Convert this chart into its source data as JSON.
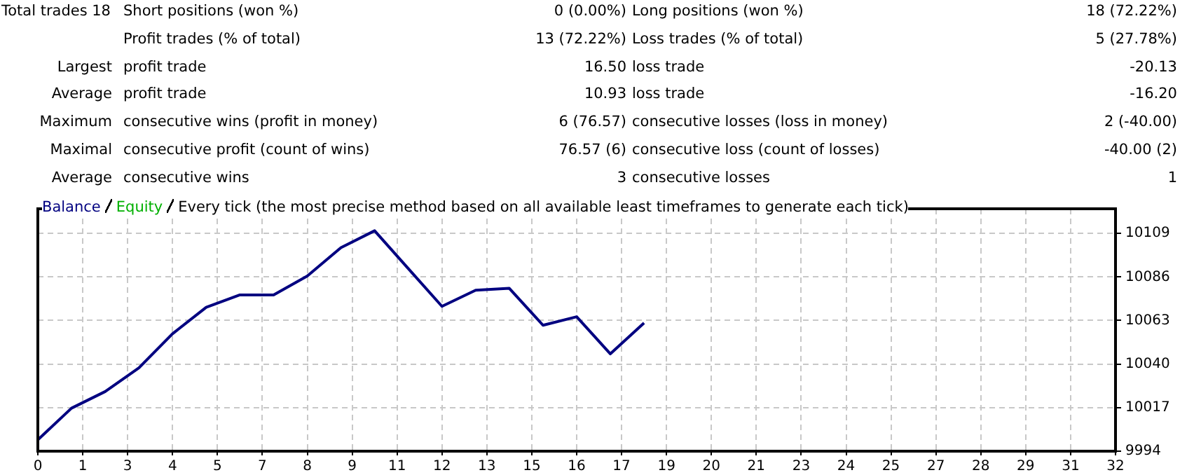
{
  "chart_data": {
    "type": "line",
    "title": "Every tick (the most precise method based on all available least timeframes to generate each tick)",
    "annotations": [
      "Total trades\t18\tShort positions (won %)\t0 (0.00%)\tLong positions (won %)\t18 (72.22%)",
      "\t\tProfit trades (% of total)\t13 (72.22%)\tLoss trades (% of total)\t5 (27.78%)",
      "Largest\t\tprofit trade\t16.50\tloss trade\t-20.13",
      "Average\t\tprofit trade\t10.93\tloss trade\t-16.20",
      "Maximum\t\tconsecutive wins (profit in money)\t6 (76.57)\tconsecutive losses (loss in money)\t2 (-40.00)",
      "Maximal\t\tconsecutive profit (count of wins)\t76.57 (6)\tconsecutive loss (count of losses)\t-40.00 (2)",
      "Average\t\tconsecutive wins\t3\tconsecutive losses\t1"
    ],
    "x": [
      0,
      1,
      2,
      3,
      4,
      5,
      6,
      7,
      8,
      9,
      10,
      11,
      12,
      13,
      14,
      15,
      16,
      17,
      18
    ],
    "series": [
      {
        "name": "Balance",
        "color": "#000080",
        "values": [
          10000,
          10016.7,
          10025.5,
          10038,
          10056,
          10070,
          10076.5,
          10076.5,
          10086.5,
          10101.5,
          10110.4,
          10090.4,
          10070.5,
          10079,
          10080,
          10060.5,
          10065,
          10045.4,
          10061.7
        ]
      },
      {
        "name": "Equity",
        "color": "#00b000",
        "values": [
          null,
          null,
          null,
          null,
          null,
          null,
          null,
          null,
          null,
          null,
          null,
          null,
          null,
          null,
          null,
          null,
          null,
          null,
          null
        ]
      }
    ],
    "xlim": [
      0,
      32
    ],
    "xticks": [
      0,
      {
        "value": 1.3333,
        "label": "1"
      },
      {
        "value": 2.6667,
        "label": "3"
      },
      4,
      {
        "value": 5.3333,
        "label": "5"
      },
      {
        "value": 6.6667,
        "label": "7"
      },
      8,
      {
        "value": 9.3333,
        "label": "9"
      },
      {
        "value": 10.6667,
        "label": "11"
      },
      12,
      {
        "value": 13.3333,
        "label": "13"
      },
      {
        "value": 14.6667,
        "label": "15"
      },
      16,
      {
        "value": 17.3333,
        "label": "17"
      },
      {
        "value": 18.6667,
        "label": "19"
      },
      20,
      {
        "value": 21.3333,
        "label": "21"
      },
      {
        "value": 22.6667,
        "label": "23"
      },
      24,
      {
        "value": 25.3333,
        "label": "25"
      },
      {
        "value": 26.6667,
        "label": "27"
      },
      28,
      {
        "value": 29.3333,
        "label": "29"
      },
      {
        "value": 30.6667,
        "label": "31"
      },
      32
    ],
    "ylim": [
      9994,
      10122
    ],
    "yticks": [
      9994,
      10017,
      10040,
      10063,
      10086,
      10109
    ],
    "grid": true,
    "legend": "top left",
    "marker": "none",
    "line_style": "solid"
  }
}
